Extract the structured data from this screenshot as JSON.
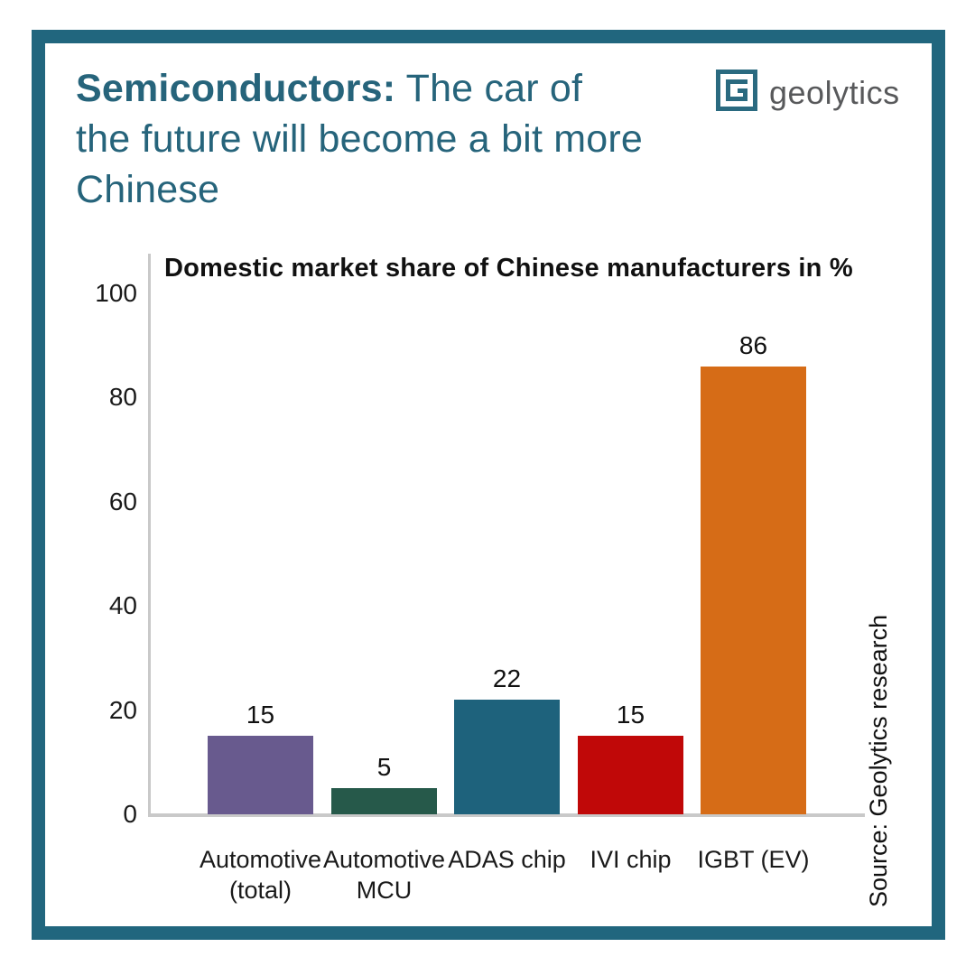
{
  "header": {
    "title_bold": "Semiconductors:",
    "title_rest": " The car of the future will become a bit more Chinese",
    "title_color": "#26647b"
  },
  "logo": {
    "text": "geolytics",
    "icon": "geolytics-g-square-icon",
    "icon_color": "#2a6a80",
    "text_color": "#58595b"
  },
  "chart_data": {
    "type": "bar",
    "title": "Domestic market share of Chinese manufacturers in %",
    "categories": [
      "Automotive (total)",
      "Automotive MCU",
      "ADAS chip",
      "IVI chip",
      "IGBT (EV)"
    ],
    "values": [
      15,
      5,
      22,
      15,
      86
    ],
    "bar_colors": [
      "#685a8e",
      "#26594a",
      "#1e627c",
      "#c00808",
      "#d66c17"
    ],
    "value_labels": [
      "15",
      "5",
      "22",
      "15",
      "86"
    ],
    "ylim": [
      0,
      100
    ],
    "yticks": [
      0,
      20,
      40,
      60,
      80,
      100
    ],
    "xlabel": "",
    "ylabel": "",
    "grid": false,
    "legend": "none",
    "axis_color": "#c9c9c9"
  },
  "source": "Source: Geolytics research",
  "frame_color": "#21667e"
}
